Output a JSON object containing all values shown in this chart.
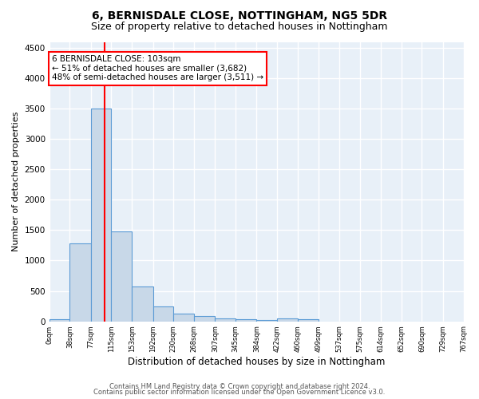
{
  "title1": "6, BERNISDALE CLOSE, NOTTINGHAM, NG5 5DR",
  "title2": "Size of property relative to detached houses in Nottingham",
  "xlabel": "Distribution of detached houses by size in Nottingham",
  "ylabel": "Number of detached properties",
  "bin_edges": [
    0,
    38,
    77,
    115,
    153,
    192,
    230,
    268,
    307,
    345,
    384,
    422,
    460,
    499,
    537,
    575,
    614,
    652,
    690,
    729,
    767
  ],
  "bar_heights": [
    30,
    1280,
    3500,
    1480,
    570,
    240,
    120,
    80,
    45,
    30,
    25,
    50,
    30,
    0,
    0,
    0,
    0,
    0,
    0,
    0
  ],
  "bar_color": "#c8d8e8",
  "bar_edge_color": "#5b9bd5",
  "property_line_x": 103,
  "property_line_color": "red",
  "annotation_line1": "6 BERNISDALE CLOSE: 103sqm",
  "annotation_line2": "← 51% of detached houses are smaller (3,682)",
  "annotation_line3": "48% of semi-detached houses are larger (3,511) →",
  "annotation_box_color": "white",
  "annotation_box_edge_color": "red",
  "ylim": [
    0,
    4600
  ],
  "yticks": [
    0,
    500,
    1000,
    1500,
    2000,
    2500,
    3000,
    3500,
    4000,
    4500
  ],
  "background_color": "#e8f0f8",
  "grid_color": "white",
  "footer1": "Contains HM Land Registry data © Crown copyright and database right 2024.",
  "footer2": "Contains public sector information licensed under the Open Government Licence v3.0.",
  "title1_fontsize": 10,
  "title2_fontsize": 9,
  "xlabel_fontsize": 8.5,
  "ylabel_fontsize": 8,
  "annotation_fontsize": 7.5,
  "footer_fontsize": 6
}
